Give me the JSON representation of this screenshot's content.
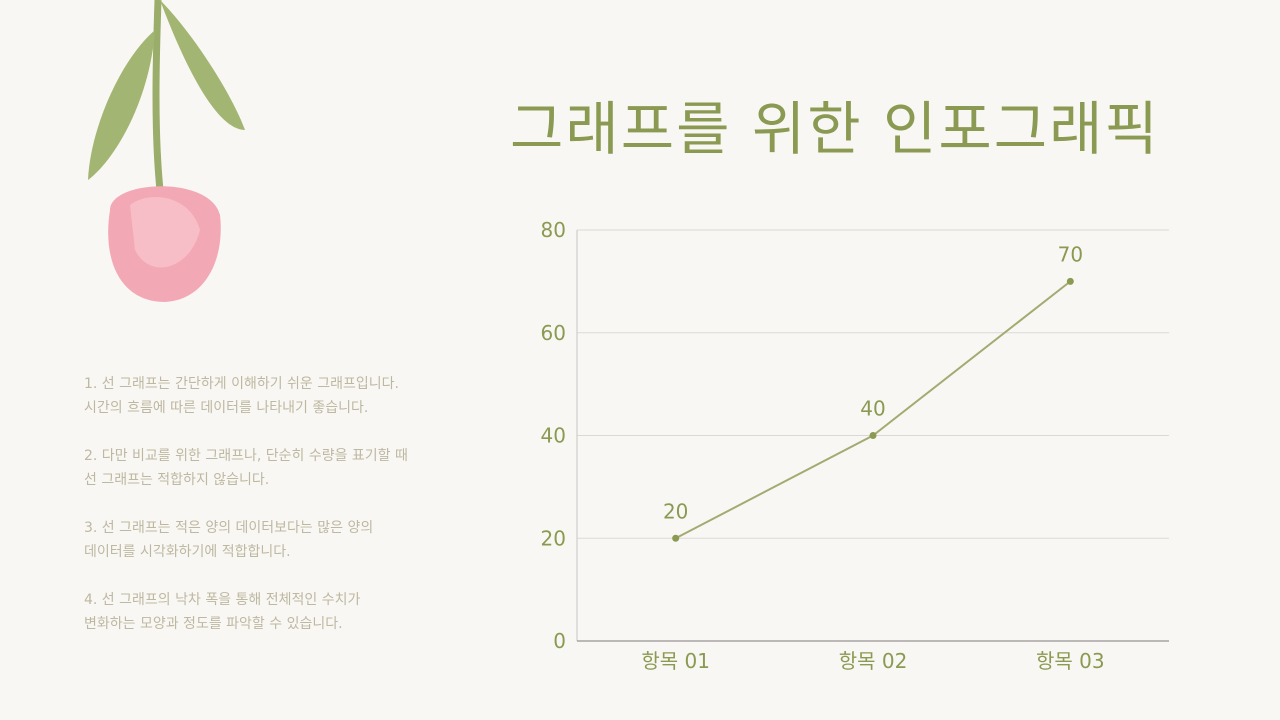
{
  "title": "그래프를 위한 인포그래픽",
  "notes": [
    {
      "line1": "1. 선 그래프는 간단하게 이해하기 쉬운 그래프입니다.",
      "line2": "시간의 흐름에 따른 데이터를 나타내기 좋습니다."
    },
    {
      "line1": "2. 다만 비교를 위한 그래프나, 단순히 수량을 표기할 때",
      "line2": "선 그래프는 적합하지 않습니다."
    },
    {
      "line1": "3. 선 그래프는 적은 양의 데이터보다는 많은 양의",
      "line2": "데이터를 시각화하기에 적합합니다."
    },
    {
      "line1": "4. 선 그래프의 낙차 폭을 통해 전체적인 수치가",
      "line2": "변화하는 모양과 정도를 파악할 수 있습니다."
    }
  ],
  "colors": {
    "accent": "#8b9a52",
    "line": "#a3ab72",
    "grid": "#dcd8d8",
    "text": "#bdb8a2",
    "background": "#f9f7f3"
  },
  "chart_data": {
    "type": "line",
    "categories": [
      "항목 01",
      "항목 02",
      "항목 03"
    ],
    "values": [
      20,
      40,
      70
    ],
    "data_labels": [
      "20",
      "40",
      "70"
    ],
    "yticks": [
      "0",
      "20",
      "40",
      "60",
      "80"
    ],
    "ylim": [
      0,
      80
    ],
    "grid": true
  }
}
